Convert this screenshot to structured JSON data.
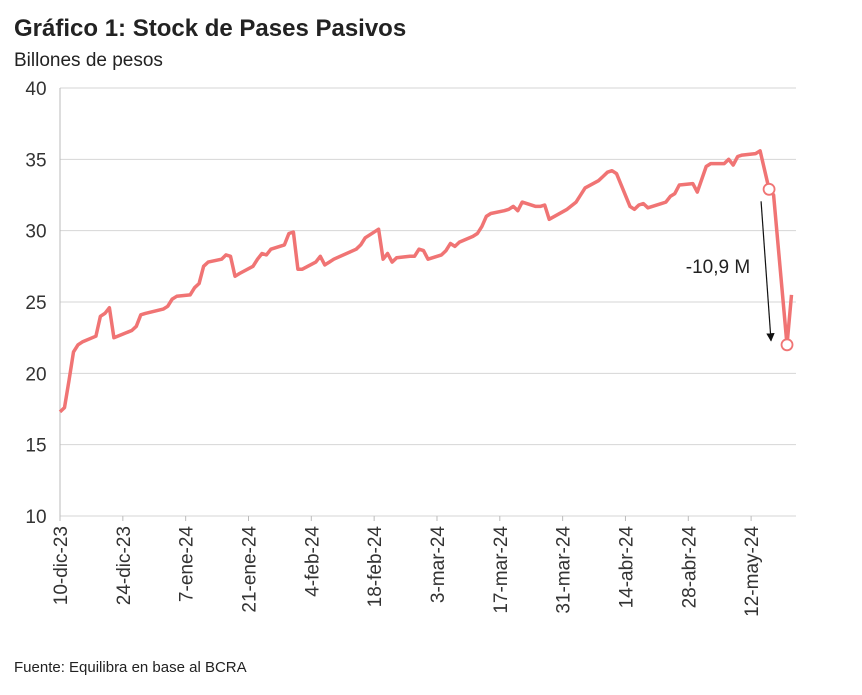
{
  "chart_data": {
    "type": "line",
    "title": "Gráfico 1: Stock de Pases Pasivos",
    "subtitle": "Billones de pesos",
    "source": "Fuente: Equilibra en base al BCRA",
    "annotation": "-10,9 M",
    "color": "#f07474",
    "grid": true,
    "ylim": [
      10,
      40
    ],
    "yticks": [
      10,
      15,
      20,
      25,
      30,
      35,
      40
    ],
    "xlim": [
      "2023-12-10",
      "2024-05-22"
    ],
    "xticks": [
      {
        "value": "2023-12-10",
        "label": "10-dic-23"
      },
      {
        "value": "2023-12-24",
        "label": "24-dic-23"
      },
      {
        "value": "2024-01-07",
        "label": "7-ene-24"
      },
      {
        "value": "2024-01-21",
        "label": "21-ene-24"
      },
      {
        "value": "2024-02-04",
        "label": "4-feb-24"
      },
      {
        "value": "2024-02-18",
        "label": "18-feb-24"
      },
      {
        "value": "2024-03-03",
        "label": "3-mar-24"
      },
      {
        "value": "2024-03-17",
        "label": "17-mar-24"
      },
      {
        "value": "2024-03-31",
        "label": "31-mar-24"
      },
      {
        "value": "2024-04-14",
        "label": "14-abr-24"
      },
      {
        "value": "2024-04-28",
        "label": "28-abr-24"
      },
      {
        "value": "2024-05-12",
        "label": "12-may-24"
      }
    ],
    "highlight_points": [
      {
        "x": "2024-05-16",
        "y": 32.9
      },
      {
        "x": "2024-05-20",
        "y": 22.0
      }
    ],
    "x": [
      "2023-12-10",
      "2023-12-11",
      "2023-12-12",
      "2023-12-13",
      "2023-12-14",
      "2023-12-15",
      "2023-12-18",
      "2023-12-19",
      "2023-12-20",
      "2023-12-21",
      "2023-12-22",
      "2023-12-26",
      "2023-12-27",
      "2023-12-28",
      "2023-12-29",
      "2024-01-02",
      "2024-01-03",
      "2024-01-04",
      "2024-01-05",
      "2024-01-08",
      "2024-01-09",
      "2024-01-10",
      "2024-01-11",
      "2024-01-12",
      "2024-01-15",
      "2024-01-16",
      "2024-01-17",
      "2024-01-18",
      "2024-01-19",
      "2024-01-22",
      "2024-01-23",
      "2024-01-24",
      "2024-01-25",
      "2024-01-26",
      "2024-01-29",
      "2024-01-30",
      "2024-01-31",
      "2024-02-01",
      "2024-02-02",
      "2024-02-05",
      "2024-02-06",
      "2024-02-07",
      "2024-02-08",
      "2024-02-09",
      "2024-02-14",
      "2024-02-15",
      "2024-02-16",
      "2024-02-19",
      "2024-02-20",
      "2024-02-21",
      "2024-02-22",
      "2024-02-23",
      "2024-02-26",
      "2024-02-27",
      "2024-02-28",
      "2024-02-29",
      "2024-03-01",
      "2024-03-04",
      "2024-03-05",
      "2024-03-06",
      "2024-03-07",
      "2024-03-08",
      "2024-03-11",
      "2024-03-12",
      "2024-03-13",
      "2024-03-14",
      "2024-03-15",
      "2024-03-18",
      "2024-03-19",
      "2024-03-20",
      "2024-03-21",
      "2024-03-22",
      "2024-03-25",
      "2024-03-26",
      "2024-03-27",
      "2024-03-28",
      "2024-04-01",
      "2024-04-03",
      "2024-04-04",
      "2024-04-05",
      "2024-04-08",
      "2024-04-09",
      "2024-04-10",
      "2024-04-11",
      "2024-04-12",
      "2024-04-15",
      "2024-04-16",
      "2024-04-17",
      "2024-04-18",
      "2024-04-19",
      "2024-04-22",
      "2024-04-23",
      "2024-04-24",
      "2024-04-25",
      "2024-04-26",
      "2024-04-29",
      "2024-04-30",
      "2024-05-02",
      "2024-05-03",
      "2024-05-06",
      "2024-05-07",
      "2024-05-08",
      "2024-05-09",
      "2024-05-10",
      "2024-05-13",
      "2024-05-14",
      "2024-05-16",
      "2024-05-17",
      "2024-05-20",
      "2024-05-21"
    ],
    "values": [
      17.3,
      17.6,
      19.5,
      21.5,
      22.0,
      22.2,
      22.6,
      24.0,
      24.2,
      24.6,
      22.5,
      23.0,
      23.3,
      24.1,
      24.2,
      24.5,
      24.7,
      25.2,
      25.4,
      25.5,
      26.0,
      26.3,
      27.5,
      27.8,
      28.0,
      28.3,
      28.2,
      26.8,
      27.0,
      27.5,
      28.0,
      28.4,
      28.3,
      28.7,
      29.0,
      29.8,
      29.9,
      27.3,
      27.3,
      27.8,
      28.2,
      27.6,
      27.8,
      28.0,
      28.7,
      29.0,
      29.5,
      30.1,
      28.0,
      28.4,
      27.8,
      28.1,
      28.2,
      28.2,
      28.7,
      28.6,
      28.0,
      28.3,
      28.6,
      29.1,
      28.9,
      29.2,
      29.6,
      29.8,
      30.3,
      31.0,
      31.2,
      31.4,
      31.5,
      31.7,
      31.4,
      32.0,
      31.7,
      31.7,
      31.8,
      30.8,
      31.5,
      32.0,
      32.5,
      33.0,
      33.5,
      33.8,
      34.1,
      34.2,
      34.0,
      31.7,
      31.5,
      31.8,
      31.9,
      31.6,
      31.9,
      32.0,
      32.4,
      32.6,
      33.2,
      33.3,
      32.7,
      34.5,
      34.7,
      34.7,
      35.0,
      34.6,
      35.2,
      35.3,
      35.4,
      35.6,
      32.9,
      32.5,
      22.0,
      25.5
    ]
  }
}
